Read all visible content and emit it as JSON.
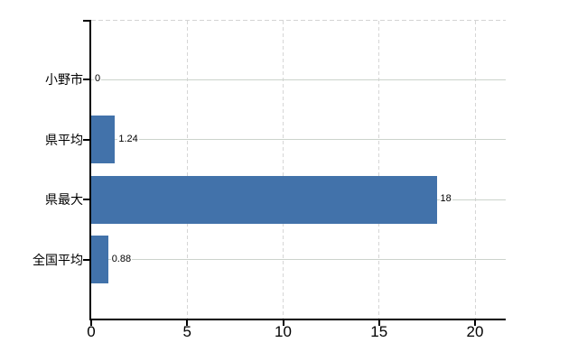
{
  "chart_data": {
    "type": "bar",
    "orientation": "horizontal",
    "title": "",
    "xlabel": "",
    "ylabel": "",
    "categories": [
      "小野市",
      "県平均",
      "県最大",
      "全国平均"
    ],
    "values": [
      0,
      1.24,
      18,
      0.88
    ],
    "value_labels": [
      "0",
      "1.24",
      "18",
      "0.88"
    ],
    "x_ticks": [
      0,
      5,
      10,
      15,
      20
    ],
    "x_tick_labels": [
      "0",
      "5",
      "10",
      "15",
      "20"
    ],
    "xlim": [
      0,
      21.6
    ],
    "grid": "on",
    "legend": "none",
    "colors": {
      "bar": "#4272aa",
      "axis": "#000000",
      "horizontal_gridline": "#ccd3cc",
      "vertical_gridline": "#d6d6d6",
      "top_border": "#d4d4d4",
      "text": "#000000",
      "background": "#ffffff"
    }
  }
}
